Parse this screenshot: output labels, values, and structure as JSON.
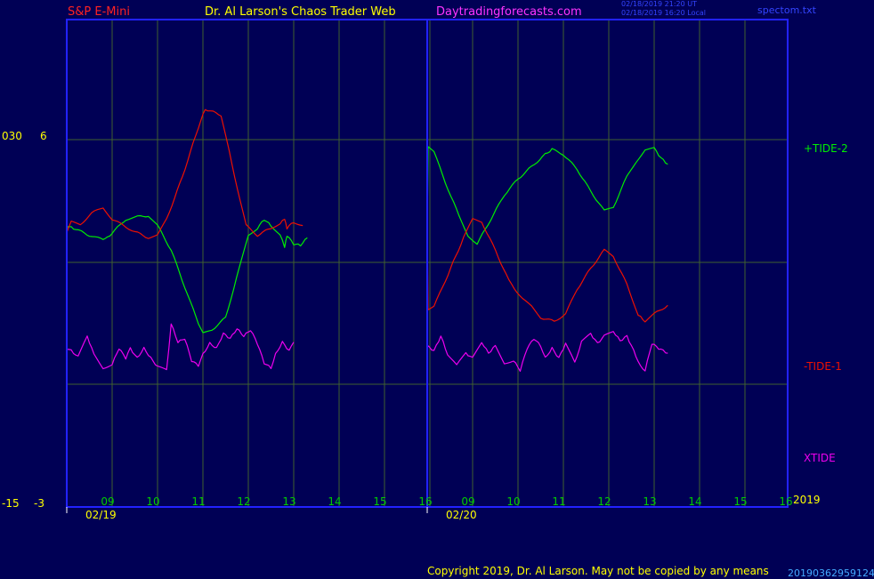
{
  "header": {
    "instrument": "S&P E-Mini",
    "author": "Dr. Al Larson's Chaos Trader Web",
    "site": "Daytradingforecasts.com",
    "ts_utc": "02/18/2019 21:20 UT",
    "ts_local": "02/18/2019 16:20 Local",
    "file": "spectom.txt"
  },
  "left_axis": {
    "top_a": "030",
    "top_b": "6",
    "bot_a": "-15",
    "bot_b": "-3"
  },
  "footer": {
    "copyright": "Copyright 2019, Dr. Al Larson. May not be copied by any means",
    "code": "20190362959124",
    "year": "2019"
  },
  "colors": {
    "background": "#000055",
    "frame": "#2222ff",
    "grid": "#406030",
    "tide2": "#00ee00",
    "tide1": "#ee1100",
    "xtide": "#ee00ee",
    "tick_label": "#00cc00",
    "yellow": "#ffff00"
  },
  "chart_data": {
    "type": "line",
    "days": [
      {
        "date": "02/19",
        "hours": [
          "09",
          "10",
          "11",
          "12",
          "13",
          "14",
          "15",
          "16"
        ]
      },
      {
        "date": "02/20",
        "hours": [
          "09",
          "10",
          "11",
          "12",
          "13",
          "14",
          "15",
          "16"
        ]
      }
    ],
    "series": [
      {
        "name": "+TIDE-2",
        "color": "#00ee00",
        "y_at_hours": [
          [
            0,
            0.28
          ],
          [
            0.05,
            0.29
          ],
          [
            0.2,
            0.27
          ],
          [
            0.5,
            0.22
          ],
          [
            0.75,
            0.19
          ],
          [
            0.9,
            0.2
          ],
          [
            1.0,
            0.24
          ],
          [
            1.3,
            0.35
          ],
          [
            1.5,
            0.37
          ],
          [
            1.8,
            0.38
          ],
          [
            2.0,
            0.3
          ],
          [
            2.3,
            0.1
          ],
          [
            2.6,
            -0.2
          ],
          [
            2.85,
            -0.45
          ],
          [
            3.0,
            -0.58
          ],
          [
            3.2,
            -0.55
          ],
          [
            3.5,
            -0.45
          ],
          [
            3.8,
            -0.05
          ],
          [
            4.0,
            0.22
          ],
          [
            4.2,
            0.28
          ],
          [
            4.35,
            0.35
          ],
          [
            4.5,
            0.3
          ],
          [
            4.7,
            0.23
          ],
          [
            4.8,
            0.12
          ],
          [
            4.85,
            0.22
          ],
          [
            5.0,
            0.15
          ],
          [
            5.15,
            0.14
          ],
          [
            5.3,
            0.2
          ]
        ]
      },
      {
        "name": "+TIDE-2",
        "color": "#00ee00",
        "y_at_hours": [
          [
            0,
            0.25
          ],
          [
            0.02,
            0.95
          ],
          [
            0.15,
            0.9
          ],
          [
            0.4,
            0.65
          ],
          [
            0.7,
            0.38
          ],
          [
            0.9,
            0.22
          ],
          [
            1.1,
            0.15
          ],
          [
            1.4,
            0.35
          ],
          [
            1.7,
            0.55
          ],
          [
            2.0,
            0.68
          ],
          [
            2.3,
            0.78
          ],
          [
            2.6,
            0.88
          ],
          [
            2.75,
            0.92
          ],
          [
            3.0,
            0.88
          ],
          [
            3.3,
            0.76
          ],
          [
            3.6,
            0.58
          ],
          [
            3.9,
            0.42
          ],
          [
            4.1,
            0.45
          ],
          [
            4.4,
            0.7
          ],
          [
            4.6,
            0.82
          ],
          [
            4.8,
            0.92
          ],
          [
            5.0,
            0.93
          ],
          [
            5.15,
            0.85
          ],
          [
            5.3,
            0.8
          ]
        ]
      },
      {
        "name": "-TIDE-1",
        "color": "#ee1100",
        "y_at_hours": [
          [
            0,
            0.25
          ],
          [
            0.1,
            0.33
          ],
          [
            0.3,
            0.31
          ],
          [
            0.55,
            0.4
          ],
          [
            0.8,
            0.45
          ],
          [
            1.0,
            0.35
          ],
          [
            1.25,
            0.3
          ],
          [
            1.5,
            0.25
          ],
          [
            1.8,
            0.2
          ],
          [
            2.0,
            0.22
          ],
          [
            2.2,
            0.35
          ],
          [
            2.55,
            0.7
          ],
          [
            2.9,
            1.1
          ],
          [
            3.05,
            1.25
          ],
          [
            3.4,
            1.2
          ],
          [
            3.7,
            0.7
          ],
          [
            3.95,
            0.3
          ],
          [
            4.2,
            0.22
          ],
          [
            4.5,
            0.28
          ],
          [
            4.7,
            0.32
          ],
          [
            4.8,
            0.35
          ],
          [
            4.85,
            0.28
          ],
          [
            5.0,
            0.33
          ],
          [
            5.2,
            0.3
          ]
        ]
      },
      {
        "name": "-TIDE-1",
        "color": "#ee1100",
        "y_at_hours": [
          [
            0,
            0.28
          ],
          [
            0.02,
            -0.38
          ],
          [
            0.15,
            -0.36
          ],
          [
            0.4,
            -0.15
          ],
          [
            0.8,
            0.2
          ],
          [
            1.0,
            0.35
          ],
          [
            1.2,
            0.33
          ],
          [
            1.5,
            0.1
          ],
          [
            1.8,
            -0.15
          ],
          [
            2.1,
            -0.3
          ],
          [
            2.3,
            -0.36
          ],
          [
            2.5,
            -0.45
          ],
          [
            2.8,
            -0.48
          ],
          [
            3.05,
            -0.42
          ],
          [
            3.3,
            -0.22
          ],
          [
            3.6,
            -0.05
          ],
          [
            3.9,
            0.1
          ],
          [
            4.1,
            0.05
          ],
          [
            4.4,
            -0.18
          ],
          [
            4.65,
            -0.43
          ],
          [
            4.8,
            -0.48
          ],
          [
            5.0,
            -0.42
          ],
          [
            5.3,
            -0.35
          ]
        ]
      },
      {
        "name": "XTIDE",
        "color": "#ee00ee",
        "y_at_hours": [
          [
            0,
            -0.7
          ],
          [
            0.1,
            -0.72
          ],
          [
            0.25,
            -0.77
          ],
          [
            0.45,
            -0.6
          ],
          [
            0.6,
            -0.75
          ],
          [
            0.8,
            -0.86
          ],
          [
            1.0,
            -0.83
          ],
          [
            1.15,
            -0.7
          ],
          [
            1.3,
            -0.78
          ],
          [
            1.4,
            -0.7
          ],
          [
            1.55,
            -0.78
          ],
          [
            1.7,
            -0.7
          ],
          [
            1.85,
            -0.78
          ],
          [
            2.0,
            -0.85
          ],
          [
            2.2,
            -0.88
          ],
          [
            2.3,
            -0.5
          ],
          [
            2.45,
            -0.65
          ],
          [
            2.6,
            -0.62
          ],
          [
            2.75,
            -0.8
          ],
          [
            2.9,
            -0.84
          ],
          [
            3.0,
            -0.75
          ],
          [
            3.15,
            -0.66
          ],
          [
            3.3,
            -0.7
          ],
          [
            3.45,
            -0.58
          ],
          [
            3.6,
            -0.62
          ],
          [
            3.75,
            -0.54
          ],
          [
            3.9,
            -0.6
          ],
          [
            4.05,
            -0.55
          ],
          [
            4.2,
            -0.66
          ],
          [
            4.35,
            -0.82
          ],
          [
            4.5,
            -0.86
          ],
          [
            4.6,
            -0.75
          ],
          [
            4.75,
            -0.65
          ],
          [
            4.9,
            -0.72
          ],
          [
            5.0,
            -0.65
          ]
        ]
      },
      {
        "name": "XTIDE",
        "color": "#ee00ee",
        "y_at_hours": [
          [
            0,
            -0.68
          ],
          [
            0.15,
            -0.72
          ],
          [
            0.3,
            -0.6
          ],
          [
            0.45,
            -0.75
          ],
          [
            0.65,
            -0.84
          ],
          [
            0.85,
            -0.74
          ],
          [
            1.0,
            -0.78
          ],
          [
            1.2,
            -0.65
          ],
          [
            1.35,
            -0.74
          ],
          [
            1.5,
            -0.68
          ],
          [
            1.7,
            -0.82
          ],
          [
            1.9,
            -0.8
          ],
          [
            2.05,
            -0.88
          ],
          [
            2.2,
            -0.7
          ],
          [
            2.35,
            -0.62
          ],
          [
            2.5,
            -0.68
          ],
          [
            2.6,
            -0.78
          ],
          [
            2.75,
            -0.7
          ],
          [
            2.9,
            -0.78
          ],
          [
            3.05,
            -0.66
          ],
          [
            3.25,
            -0.82
          ],
          [
            3.4,
            -0.65
          ],
          [
            3.6,
            -0.58
          ],
          [
            3.75,
            -0.66
          ],
          [
            3.9,
            -0.6
          ],
          [
            4.1,
            -0.56
          ],
          [
            4.25,
            -0.64
          ],
          [
            4.4,
            -0.6
          ],
          [
            4.55,
            -0.72
          ],
          [
            4.7,
            -0.85
          ],
          [
            4.8,
            -0.88
          ],
          [
            4.95,
            -0.66
          ],
          [
            5.1,
            -0.7
          ],
          [
            5.2,
            -0.72
          ],
          [
            5.3,
            -0.74
          ]
        ]
      }
    ],
    "series_labels": [
      "+TIDE-2",
      "-TIDE-1",
      "XTIDE"
    ],
    "ylim": [
      -1,
      1.3
    ]
  }
}
